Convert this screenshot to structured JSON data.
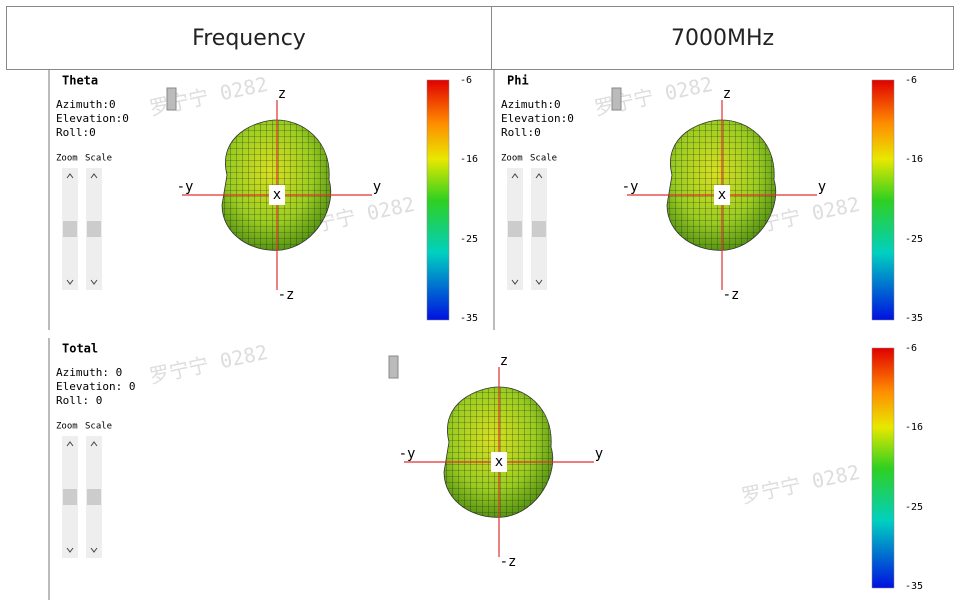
{
  "header": {
    "cells": [
      "Frequency",
      "7000MHz"
    ]
  },
  "watermark": "罗宁宁 0282",
  "panels": [
    {
      "title": "Theta",
      "azimuth": "Azimuth:0",
      "elevation": "Elevation:0",
      "roll": "Roll:0",
      "zoom": "Zoom",
      "scale": "Scale",
      "axes": {
        "z": "z",
        "neg_y": "-y",
        "y": "y",
        "x": "x",
        "neg_z": "-z"
      },
      "colorbar_ticks": [
        -6,
        -16,
        -25,
        -35
      ]
    },
    {
      "title": "Phi",
      "azimuth": "Azimuth:0",
      "elevation": "Elevation:0",
      "roll": "Roll:0",
      "zoom": "Zoom",
      "scale": "Scale",
      "axes": {
        "z": "z",
        "neg_y": "-y",
        "y": "y",
        "x": "x",
        "neg_z": "-z"
      },
      "colorbar_ticks": [
        -6,
        -16,
        -25,
        -35
      ]
    },
    {
      "title": "Total",
      "azimuth": "Azimuth: 0",
      "elevation": "Elevation: 0",
      "roll": "Roll: 0",
      "zoom": "Zoom",
      "scale": "Scale",
      "axes": {
        "z": "z",
        "neg_y": "-y",
        "y": "y",
        "x": "x",
        "neg_z": "-z"
      },
      "colorbar_ticks": [
        -6,
        -16,
        -25,
        -35
      ]
    }
  ]
}
